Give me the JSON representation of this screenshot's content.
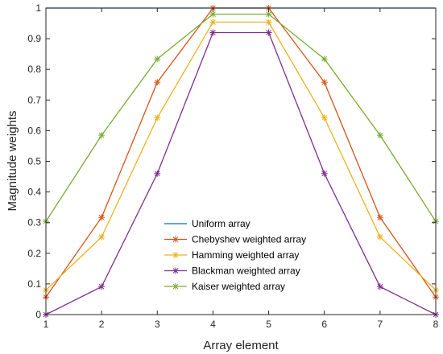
{
  "chart_data": {
    "type": "line",
    "title": "",
    "xlabel": "Array element",
    "ylabel": "Magnitude weights",
    "xlim": [
      1,
      8
    ],
    "ylim": [
      0,
      1
    ],
    "x_ticks": [
      "1",
      "2",
      "3",
      "4",
      "5",
      "6",
      "7",
      "8"
    ],
    "y_ticks": [
      "0",
      "0.1",
      "0.2",
      "0.3",
      "0.4",
      "0.5",
      "0.6",
      "0.7",
      "0.8",
      "0.9",
      "1"
    ],
    "grid": false,
    "legend_position": "bottom-center",
    "x": [
      1,
      2,
      3,
      4,
      5,
      6,
      7,
      8
    ],
    "series": [
      {
        "name": "Uniform array",
        "color": "#0072BD",
        "marker": "none",
        "values": [
          1,
          1,
          1,
          1,
          1,
          1,
          1,
          1
        ]
      },
      {
        "name": "Chebyshev weighted array",
        "color": "#D95319",
        "marker": "asterisk",
        "values": [
          0.057,
          0.317,
          0.758,
          1.0,
          1.0,
          0.758,
          0.317,
          0.057
        ]
      },
      {
        "name": "Hamming weighted array",
        "color": "#EDB120",
        "marker": "asterisk",
        "values": [
          0.08,
          0.253,
          0.642,
          0.954,
          0.954,
          0.642,
          0.253,
          0.08
        ]
      },
      {
        "name": "Blackman weighted array",
        "color": "#7E2F8E",
        "marker": "asterisk",
        "values": [
          0.0,
          0.091,
          0.46,
          0.92,
          0.92,
          0.46,
          0.091,
          0.0
        ]
      },
      {
        "name": "Kaiser weighted array",
        "color": "#77AC30",
        "marker": "asterisk",
        "values": [
          0.304,
          0.585,
          0.834,
          0.98,
          0.98,
          0.834,
          0.585,
          0.304
        ]
      }
    ]
  }
}
